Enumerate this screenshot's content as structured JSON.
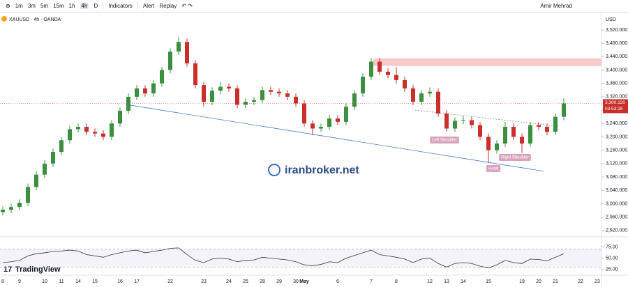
{
  "toolbar": {
    "timeframes": [
      "1m",
      "3m",
      "5m",
      "15m",
      "1h",
      "4h",
      "D"
    ],
    "indicators": "Indicators",
    "alert": "Alert",
    "replay": "Replay",
    "user": "Amir Mehrad"
  },
  "chart_data": {
    "type": "candlestick",
    "symbol": "XAUUSD · 4h · OANDA",
    "currency": "USD",
    "watermark": "iranbroker.net",
    "brand": "TradingView",
    "up_color": "#3b8f3f",
    "down_color": "#c9302c",
    "categories": [
      "8",
      null,
      "9",
      null,
      null,
      "10",
      null,
      "11",
      null,
      "14",
      null,
      "15",
      null,
      null,
      "16",
      null,
      "17",
      null,
      null,
      null,
      "22",
      null,
      null,
      null,
      "23",
      null,
      null,
      "24",
      null,
      "25",
      null,
      "28",
      null,
      "29",
      null,
      "30",
      "May",
      null,
      null,
      null,
      "6",
      null,
      null,
      null,
      "7",
      null,
      null,
      "8",
      null,
      null,
      null,
      "12",
      null,
      "13",
      null,
      "14",
      null,
      null,
      "15",
      null,
      null,
      null,
      "19",
      null,
      "20",
      null,
      "21",
      null,
      null,
      "22",
      null,
      "23"
    ],
    "candles": [
      [
        2975,
        2992,
        2965,
        2982
      ],
      [
        2982,
        3000,
        2972,
        2990
      ],
      [
        2990,
        3013,
        2980,
        3003
      ],
      [
        3003,
        3060,
        2993,
        3050
      ],
      [
        3050,
        3097,
        3040,
        3087
      ],
      [
        3087,
        3130,
        3077,
        3120
      ],
      [
        3120,
        3165,
        3110,
        3155
      ],
      [
        3155,
        3200,
        3145,
        3190
      ],
      [
        3190,
        3233,
        3180,
        3223
      ],
      [
        3223,
        3240,
        3213,
        3230
      ],
      [
        3230,
        3240,
        3205,
        3215
      ],
      [
        3215,
        3225,
        3200,
        3210
      ],
      [
        3210,
        3220,
        3190,
        3200
      ],
      [
        3200,
        3250,
        3190,
        3240
      ],
      [
        3240,
        3288,
        3230,
        3278
      ],
      [
        3278,
        3330,
        3268,
        3320
      ],
      [
        3320,
        3355,
        3310,
        3345
      ],
      [
        3345,
        3355,
        3320,
        3330
      ],
      [
        3330,
        3370,
        3320,
        3360
      ],
      [
        3360,
        3410,
        3350,
        3400
      ],
      [
        3400,
        3465,
        3390,
        3455
      ],
      [
        3455,
        3500,
        3445,
        3484
      ],
      [
        3484,
        3494,
        3410,
        3420
      ],
      [
        3420,
        3430,
        3345,
        3355
      ],
      [
        3355,
        3365,
        3290,
        3305
      ],
      [
        3305,
        3348,
        3295,
        3338
      ],
      [
        3338,
        3365,
        3328,
        3350
      ],
      [
        3350,
        3360,
        3335,
        3345
      ],
      [
        3345,
        3355,
        3286,
        3296
      ],
      [
        3296,
        3315,
        3286,
        3305
      ],
      [
        3305,
        3320,
        3295,
        3310
      ],
      [
        3310,
        3350,
        3300,
        3340
      ],
      [
        3340,
        3350,
        3325,
        3335
      ],
      [
        3335,
        3345,
        3320,
        3330
      ],
      [
        3330,
        3340,
        3310,
        3320
      ],
      [
        3320,
        3330,
        3290,
        3300
      ],
      [
        3300,
        3310,
        3230,
        3240
      ],
      [
        3240,
        3250,
        3205,
        3225
      ],
      [
        3225,
        3240,
        3215,
        3230
      ],
      [
        3230,
        3265,
        3220,
        3255
      ],
      [
        3255,
        3265,
        3235,
        3245
      ],
      [
        3245,
        3300,
        3235,
        3290
      ],
      [
        3290,
        3340,
        3280,
        3330
      ],
      [
        3330,
        3390,
        3320,
        3380
      ],
      [
        3380,
        3435,
        3370,
        3425
      ],
      [
        3425,
        3435,
        3385,
        3395
      ],
      [
        3395,
        3405,
        3375,
        3385
      ],
      [
        3385,
        3408,
        3360,
        3370
      ],
      [
        3370,
        3380,
        3335,
        3345
      ],
      [
        3345,
        3355,
        3295,
        3305
      ],
      [
        3305,
        3340,
        3295,
        3330
      ],
      [
        3330,
        3348,
        3320,
        3335
      ],
      [
        3335,
        3345,
        3260,
        3270
      ],
      [
        3270,
        3280,
        3215,
        3225
      ],
      [
        3225,
        3258,
        3215,
        3248
      ],
      [
        3248,
        3262,
        3238,
        3250
      ],
      [
        3250,
        3260,
        3225,
        3235
      ],
      [
        3235,
        3245,
        3190,
        3200
      ],
      [
        3200,
        3210,
        3122,
        3160
      ],
      [
        3160,
        3190,
        3150,
        3180
      ],
      [
        3180,
        3245,
        3170,
        3230
      ],
      [
        3230,
        3240,
        3190,
        3200
      ],
      [
        3200,
        3210,
        3152,
        3180
      ],
      [
        3180,
        3245,
        3170,
        3235
      ],
      [
        3235,
        3245,
        3220,
        3230
      ],
      [
        3230,
        3240,
        3205,
        3215
      ],
      [
        3215,
        3270,
        3205,
        3260
      ],
      [
        3260,
        3315,
        3250,
        3300
      ],
      null,
      null,
      null,
      null
    ],
    "ylim": [
      2905,
      3547
    ],
    "yticks": [
      {
        "value": 3520,
        "label": "3,520.000"
      },
      {
        "value": 3480,
        "label": "3,480.000"
      },
      {
        "value": 3440,
        "label": "3,440.000"
      },
      {
        "value": 3400,
        "label": "3,400.000"
      },
      {
        "value": 3360,
        "label": "3,360.000"
      },
      {
        "value": 3320,
        "label": "3,320.000"
      },
      {
        "value": 3280,
        "label": "3,280.000"
      },
      {
        "value": 3240,
        "label": "3,240.000"
      },
      {
        "value": 3200,
        "label": "3,200.000"
      },
      {
        "value": 3160,
        "label": "3,160.000"
      },
      {
        "value": 3120,
        "label": "3,120.000"
      },
      {
        "value": 3080,
        "label": "3,080.000"
      },
      {
        "value": 3040,
        "label": "3,040.000"
      },
      {
        "value": 3000,
        "label": "3,000.000"
      },
      {
        "value": 2960,
        "label": "2,960.000"
      },
      {
        "value": 2920,
        "label": "2,920.000"
      }
    ],
    "last_price": {
      "value": 3300.12,
      "label": "3,300.120"
    },
    "countdown": "03:53:28",
    "resistance_zone": [
      3412,
      3435
    ],
    "trendline": [
      3297,
      3097
    ],
    "neckline": [
      3280,
      3232
    ],
    "annotations": [
      "Left Shoulder",
      "Head",
      "Right Shoulder"
    ],
    "rsi": {
      "values": [
        40,
        42,
        45,
        55,
        60,
        62,
        65,
        66,
        68,
        66,
        58,
        55,
        52,
        58,
        62,
        66,
        68,
        62,
        65,
        68,
        72,
        73,
        58,
        45,
        40,
        48,
        50,
        48,
        42,
        45,
        46,
        52,
        50,
        48,
        46,
        42,
        35,
        33,
        36,
        42,
        40,
        50,
        56,
        62,
        68,
        58,
        55,
        52,
        48,
        40,
        48,
        50,
        38,
        30,
        38,
        40,
        38,
        32,
        28,
        35,
        45,
        40,
        38,
        48,
        47,
        44,
        52,
        60,
        null,
        null,
        null,
        null
      ],
      "color": "#333333",
      "ylim": [
        15,
        90
      ],
      "bands": [
        70,
        30
      ],
      "yticks": [
        {
          "value": 75,
          "label": "75.00"
        },
        {
          "value": 50,
          "label": "50.00"
        },
        {
          "value": 25,
          "label": "25.00"
        }
      ]
    }
  }
}
